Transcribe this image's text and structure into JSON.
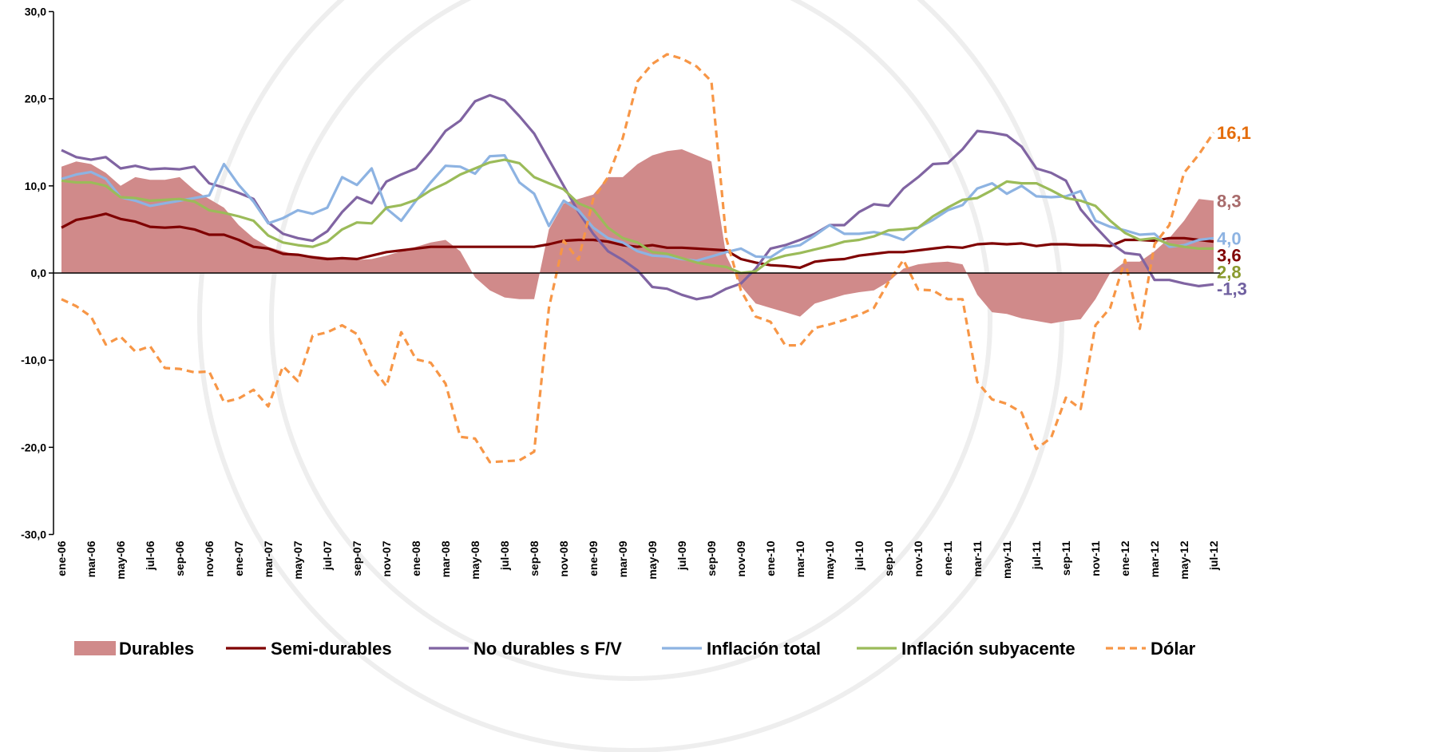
{
  "chart_data": {
    "type": "line",
    "categories": [
      "ene-06",
      null,
      "mar-06",
      null,
      "may-06",
      null,
      "jul-06",
      null,
      "sep-06",
      null,
      "nov-06",
      null,
      "ene-07",
      null,
      "mar-07",
      null,
      "may-07",
      null,
      "jul-07",
      null,
      "sep-07",
      null,
      "nov-07",
      null,
      "ene-08",
      null,
      "mar-08",
      null,
      "may-08",
      null,
      "jul-08",
      null,
      "sep-08",
      null,
      "nov-08",
      null,
      "ene-09",
      null,
      "mar-09",
      null,
      "may-09",
      null,
      "jul-09",
      null,
      "sep-09",
      null,
      "nov-09",
      null,
      "ene-10",
      null,
      "mar-10",
      null,
      "may-10",
      null,
      "jul-10",
      null,
      "sep-10",
      null,
      "nov-10",
      null,
      "ene-11",
      null,
      "mar-11",
      null,
      "may-11",
      null,
      "jul-11",
      null,
      "sep-11",
      null,
      "nov-11",
      null,
      "ene-12",
      null,
      "mar-12",
      null,
      "may-12",
      null,
      "jul-12"
    ],
    "ylim": [
      -30,
      30
    ],
    "yticks": [
      {
        "value": -30,
        "label": "-30,0"
      },
      {
        "value": -20,
        "label": "-20,0"
      },
      {
        "value": -10,
        "label": "-10,0"
      },
      {
        "value": 0,
        "label": "0,0"
      },
      {
        "value": 10,
        "label": "10,0"
      },
      {
        "value": 20,
        "label": "20,0"
      },
      {
        "value": 30,
        "label": "30,0"
      }
    ],
    "legend": "bottom",
    "series": [
      {
        "name": "Durables",
        "color": "#d08a8a",
        "style": "area",
        "label_color": "#a86b6b",
        "values": [
          12.2,
          12.8,
          12.5,
          11.5,
          10.0,
          11.0,
          10.7,
          10.7,
          11.0,
          9.5,
          8.5,
          7.5,
          5.5,
          4.0,
          3.0,
          2.5,
          2.0,
          2.0,
          1.8,
          1.7,
          1.5,
          1.6,
          2.0,
          2.5,
          3.0,
          3.5,
          3.8,
          2.5,
          -0.5,
          -2.0,
          -2.8,
          -3.0,
          -3.0,
          5.0,
          8.0,
          8.5,
          9.0,
          11.0,
          11.0,
          12.5,
          13.5,
          14.0,
          14.2,
          13.5,
          12.8,
          2.0,
          -1.5,
          -3.5,
          -4.0,
          -4.5,
          -5.0,
          -3.5,
          -3.0,
          -2.5,
          -2.2,
          -2.0,
          -1.0,
          0.5,
          1.0,
          1.2,
          1.3,
          1.0,
          -2.5,
          -4.5,
          -4.7,
          -5.2,
          -5.5,
          -5.8,
          -5.5,
          -5.3,
          -3.0,
          0.0,
          1.3,
          1.3,
          2.5,
          4.0,
          6.0,
          8.5,
          8.3
        ],
        "value_labels": {
          "78": "8,3"
        }
      },
      {
        "name": "Semi-durables",
        "color": "#7f0000",
        "style": "solid",
        "label_color": "#7f0000",
        "values": [
          5.2,
          6.1,
          6.4,
          6.8,
          6.2,
          5.9,
          5.3,
          5.2,
          5.3,
          5.0,
          4.4,
          4.4,
          3.8,
          3.0,
          2.8,
          2.2,
          2.1,
          1.8,
          1.6,
          1.7,
          1.6,
          2.0,
          2.4,
          2.6,
          2.8,
          3.0,
          3.0,
          3.0,
          3.0,
          3.0,
          3.0,
          3.0,
          3.0,
          3.3,
          3.7,
          3.8,
          3.8,
          3.6,
          3.2,
          3.0,
          3.2,
          2.9,
          2.9,
          2.8,
          2.7,
          2.6,
          1.6,
          1.2,
          0.9,
          0.8,
          0.6,
          1.3,
          1.5,
          1.6,
          2.0,
          2.2,
          2.4,
          2.4,
          2.6,
          2.8,
          3.0,
          2.9,
          3.3,
          3.4,
          3.3,
          3.4,
          3.1,
          3.3,
          3.3,
          3.2,
          3.2,
          3.1,
          3.8,
          3.8,
          3.7,
          4.0,
          4.0,
          3.8,
          3.6
        ],
        "value_labels": {
          "78": "3,6"
        }
      },
      {
        "name": "No durables s F/V",
        "color": "#8064a2",
        "style": "solid",
        "label_color": "#7060a0",
        "values": [
          14.1,
          13.3,
          13.0,
          13.3,
          12.0,
          12.3,
          11.9,
          12.0,
          11.9,
          12.2,
          10.3,
          9.8,
          9.2,
          8.5,
          5.8,
          4.5,
          4.0,
          3.7,
          4.8,
          7.0,
          8.7,
          8.0,
          10.5,
          11.3,
          12.0,
          14.0,
          16.3,
          17.5,
          19.7,
          20.4,
          19.8,
          18.0,
          16.0,
          13.0,
          10.0,
          7.0,
          4.5,
          2.5,
          1.5,
          0.3,
          -1.6,
          -1.8,
          -2.5,
          -3.0,
          -2.7,
          -1.8,
          -1.2,
          0.5,
          2.8,
          3.2,
          3.8,
          4.5,
          5.5,
          5.5,
          7.0,
          7.9,
          7.7,
          9.7,
          11.0,
          12.5,
          12.6,
          14.2,
          16.3,
          16.1,
          15.8,
          14.5,
          12.0,
          11.5,
          10.6,
          7.3,
          5.3,
          3.5,
          2.3,
          2.1,
          -0.8,
          -0.8,
          -1.2,
          -1.5,
          -1.3
        ],
        "value_labels": {
          "78": "-1,3"
        }
      },
      {
        "name": "Inflación total",
        "color": "#8db3e2",
        "style": "solid",
        "label_color": "#8db3e2",
        "values": [
          10.8,
          11.3,
          11.6,
          10.8,
          8.7,
          8.3,
          7.7,
          8.0,
          8.3,
          8.6,
          8.9,
          12.5,
          10.1,
          8.2,
          5.7,
          6.3,
          7.2,
          6.8,
          7.5,
          11.0,
          10.1,
          12.0,
          7.4,
          6.0,
          8.3,
          10.4,
          12.3,
          12.2,
          11.4,
          13.4,
          13.5,
          10.4,
          9.1,
          5.4,
          8.3,
          7.2,
          5.2,
          4.0,
          3.5,
          2.5,
          2.0,
          1.9,
          1.6,
          1.4,
          1.9,
          2.4,
          2.8,
          1.9,
          1.8,
          2.9,
          3.2,
          4.3,
          5.5,
          4.5,
          4.5,
          4.7,
          4.4,
          3.8,
          5.2,
          6.1,
          7.2,
          7.8,
          9.7,
          10.3,
          9.1,
          10.0,
          8.8,
          8.7,
          8.8,
          9.4,
          6.0,
          5.3,
          4.9,
          4.4,
          4.5,
          3.0,
          3.2,
          3.8,
          4.0
        ],
        "value_labels": {
          "78": "4,0"
        }
      },
      {
        "name": "Inflación subyacente",
        "color": "#9bbb59",
        "style": "solid",
        "label_color": "#8a9a2e",
        "values": [
          10.6,
          10.4,
          10.4,
          10.0,
          8.7,
          8.6,
          8.3,
          8.4,
          8.5,
          8.2,
          7.2,
          6.9,
          6.5,
          6.0,
          4.3,
          3.5,
          3.2,
          3.0,
          3.6,
          5.0,
          5.8,
          5.7,
          7.5,
          7.8,
          8.4,
          9.5,
          10.3,
          11.3,
          12.0,
          12.7,
          13.0,
          12.6,
          11.0,
          10.3,
          9.6,
          8.0,
          7.3,
          5.2,
          4.0,
          3.5,
          2.4,
          2.2,
          1.7,
          1.2,
          0.9,
          0.7,
          0.0,
          0.2,
          1.5,
          2.0,
          2.3,
          2.7,
          3.1,
          3.6,
          3.8,
          4.2,
          4.9,
          5.0,
          5.2,
          6.5,
          7.5,
          8.4,
          8.6,
          9.5,
          10.5,
          10.3,
          10.3,
          9.5,
          8.6,
          8.3,
          7.7,
          6.0,
          4.6,
          3.8,
          4.0,
          3.3,
          3.0,
          2.8,
          2.8
        ],
        "value_labels": {
          "78": "2,8"
        }
      },
      {
        "name": "Dólar",
        "color": "#f79646",
        "style": "dashed",
        "label_color": "#e46c0a",
        "values": [
          -3.0,
          -3.8,
          -5.0,
          -8.2,
          -7.3,
          -9.0,
          -8.4,
          -10.9,
          -11.0,
          -11.4,
          -11.3,
          -14.8,
          -14.4,
          -13.4,
          -15.3,
          -10.7,
          -12.4,
          -7.2,
          -6.8,
          -6.0,
          -7.0,
          -10.7,
          -13.0,
          -6.8,
          -9.9,
          -10.3,
          -12.7,
          -18.8,
          -19.0,
          -21.7,
          -21.6,
          -21.5,
          -20.5,
          -4.0,
          3.7,
          1.5,
          8.5,
          11.0,
          15.5,
          22.0,
          24.0,
          25.1,
          24.6,
          23.7,
          22.0,
          4.0,
          -2.0,
          -5.0,
          -5.6,
          -8.3,
          -8.3,
          -6.3,
          -5.9,
          -5.4,
          -4.8,
          -4.0,
          -1.0,
          1.5,
          -1.9,
          -2.0,
          -3.0,
          -3.0,
          -12.5,
          -14.5,
          -15.0,
          -16.0,
          -20.2,
          -18.9,
          -14.3,
          -15.6,
          -6.0,
          -4.0,
          1.5,
          -6.4,
          3.3,
          5.5,
          11.5,
          13.6,
          16.1
        ],
        "value_labels": {
          "78": "16,1"
        }
      }
    ]
  }
}
